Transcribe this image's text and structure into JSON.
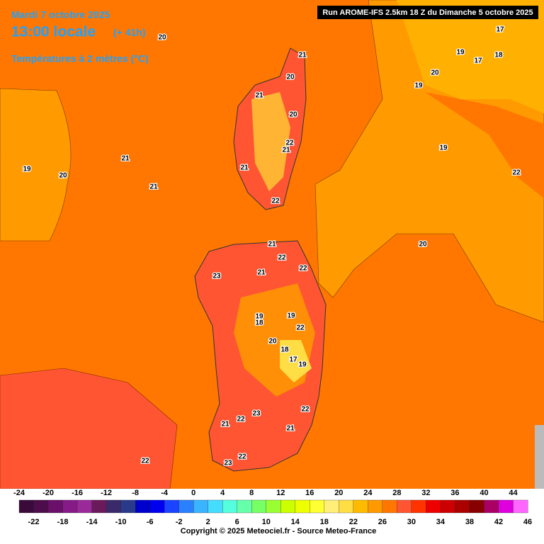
{
  "header": {
    "date": "Mardi 7 octobre 2025",
    "time": "13:00 locale",
    "lead": "(+ 41h)",
    "subtitle": "Températures à 2 mètres (°C)",
    "run": "Run AROME-IFS 2.5km 18 Z du Dimanche 5 octobre 2025"
  },
  "map_labels": [
    20,
    21,
    20,
    21,
    20,
    22,
    21,
    21,
    22,
    21,
    21,
    19,
    20,
    17,
    19,
    18,
    17,
    20,
    19,
    19,
    22,
    20,
    21,
    22,
    22,
    21,
    23,
    19,
    18,
    19,
    22,
    20,
    18,
    17,
    19,
    22,
    23,
    22,
    21,
    21,
    22,
    23,
    22
  ],
  "scale": {
    "lim": [
      -24,
      46
    ],
    "top_labels": [
      -24,
      -20,
      -16,
      -12,
      -8,
      -4,
      0,
      4,
      8,
      12,
      16,
      20,
      24,
      28,
      32,
      36,
      40,
      44
    ],
    "bottom_labels": [
      -22,
      -18,
      -14,
      -10,
      -6,
      -2,
      2,
      6,
      10,
      14,
      18,
      22,
      26,
      30,
      34,
      38,
      42,
      46
    ],
    "colors": [
      "#3a0a3a",
      "#4d0d4d",
      "#6a106a",
      "#861a86",
      "#9a2a9a",
      "#6a1a5a",
      "#3a2a6a",
      "#2a3a8a",
      "#0000cc",
      "#0000ee",
      "#1a44ff",
      "#2a80ff",
      "#3ab4ff",
      "#44ddff",
      "#55ffdd",
      "#66ffaa",
      "#77ff66",
      "#99ff33",
      "#ccff00",
      "#eeff00",
      "#ffff33",
      "#ffee77",
      "#ffdd44",
      "#ffbb00",
      "#ff9900",
      "#ff7700",
      "#ff5533",
      "#ff3300",
      "#ee0000",
      "#cc0000",
      "#aa0000",
      "#880000",
      "#aa0066",
      "#dd00dd",
      "#ff66ff"
    ]
  },
  "copyright": "Copyright © 2025 Meteociel.fr - Source Meteo-France"
}
